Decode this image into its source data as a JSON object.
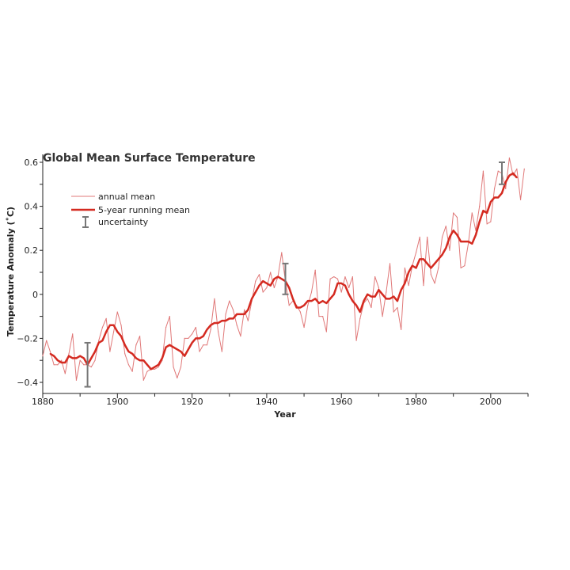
{
  "chart_data": {
    "type": "line",
    "title": "Global Mean Surface Temperature",
    "xlabel": "Year",
    "ylabel": "Temperature Anomaly (˚C)",
    "xlim": [
      1880,
      2010
    ],
    "ylim": [
      -0.45,
      0.65
    ],
    "x_ticks": [
      1880,
      1900,
      1920,
      1940,
      1960,
      1980,
      2000
    ],
    "y_ticks": [
      -0.4,
      -0.2,
      0,
      0.2,
      0.4,
      0.6
    ],
    "y_tick_labels": [
      "−0.4",
      "−0.2",
      "0",
      "0.2",
      "0.4",
      "0.6"
    ],
    "grid": false,
    "legend_position": "top-left",
    "colors": {
      "annual": "#e07878",
      "running": "#d42a20",
      "uncertainty": "#777777"
    },
    "series": [
      {
        "name": "annual mean",
        "x": [
          1880,
          1881,
          1882,
          1883,
          1884,
          1885,
          1886,
          1887,
          1888,
          1889,
          1890,
          1891,
          1892,
          1893,
          1894,
          1895,
          1896,
          1897,
          1898,
          1899,
          1900,
          1901,
          1902,
          1903,
          1904,
          1905,
          1906,
          1907,
          1908,
          1909,
          1910,
          1911,
          1912,
          1913,
          1914,
          1915,
          1916,
          1917,
          1918,
          1919,
          1920,
          1921,
          1922,
          1923,
          1924,
          1925,
          1926,
          1927,
          1928,
          1929,
          1930,
          1931,
          1932,
          1933,
          1934,
          1935,
          1936,
          1937,
          1938,
          1939,
          1940,
          1941,
          1942,
          1943,
          1944,
          1945,
          1946,
          1947,
          1948,
          1949,
          1950,
          1951,
          1952,
          1953,
          1954,
          1955,
          1956,
          1957,
          1958,
          1959,
          1960,
          1961,
          1962,
          1963,
          1964,
          1965,
          1966,
          1967,
          1968,
          1969,
          1970,
          1971,
          1972,
          1973,
          1974,
          1975,
          1976,
          1977,
          1978,
          1979,
          1980,
          1981,
          1982,
          1983,
          1984,
          1985,
          1986,
          1987,
          1988,
          1989,
          1990,
          1991,
          1992,
          1993,
          1994,
          1995,
          1996,
          1997,
          1998,
          1999,
          2000,
          2001,
          2002,
          2003,
          2004,
          2005,
          2006,
          2007,
          2008,
          2009
        ],
        "values": [
          -0.28,
          -0.21,
          -0.26,
          -0.32,
          -0.32,
          -0.3,
          -0.36,
          -0.27,
          -0.18,
          -0.39,
          -0.3,
          -0.32,
          -0.32,
          -0.33,
          -0.3,
          -0.21,
          -0.15,
          -0.11,
          -0.26,
          -0.17,
          -0.08,
          -0.14,
          -0.27,
          -0.32,
          -0.35,
          -0.23,
          -0.19,
          -0.39,
          -0.35,
          -0.34,
          -0.34,
          -0.33,
          -0.3,
          -0.15,
          -0.1,
          -0.33,
          -0.38,
          -0.33,
          -0.2,
          -0.2,
          -0.18,
          -0.15,
          -0.26,
          -0.23,
          -0.23,
          -0.16,
          -0.02,
          -0.17,
          -0.26,
          -0.09,
          -0.03,
          -0.07,
          -0.14,
          -0.19,
          -0.07,
          -0.12,
          -0.03,
          0.06,
          0.09,
          0.01,
          0.03,
          0.1,
          0.03,
          0.08,
          0.19,
          0.06,
          -0.05,
          -0.03,
          -0.05,
          -0.08,
          -0.15,
          -0.05,
          0.01,
          0.11,
          -0.1,
          -0.1,
          -0.17,
          0.07,
          0.08,
          0.07,
          0.01,
          0.08,
          0.03,
          0.08,
          -0.21,
          -0.11,
          -0.04,
          -0.02,
          -0.06,
          0.08,
          0.03,
          -0.1,
          0.01,
          0.14,
          -0.08,
          -0.06,
          -0.16,
          0.12,
          0.04,
          0.13,
          0.19,
          0.26,
          0.04,
          0.26,
          0.09,
          0.05,
          0.12,
          0.26,
          0.31,
          0.2,
          0.37,
          0.35,
          0.12,
          0.13,
          0.23,
          0.37,
          0.29,
          0.4,
          0.56,
          0.32,
          0.33,
          0.48,
          0.56,
          0.55,
          0.48,
          0.62,
          0.54,
          0.57,
          0.43,
          0.57
        ]
      },
      {
        "name": "5-year running mean",
        "x": [
          1882,
          1883,
          1884,
          1885,
          1886,
          1887,
          1888,
          1889,
          1890,
          1891,
          1892,
          1893,
          1894,
          1895,
          1896,
          1897,
          1898,
          1899,
          1900,
          1901,
          1902,
          1903,
          1904,
          1905,
          1906,
          1907,
          1908,
          1909,
          1910,
          1911,
          1912,
          1913,
          1914,
          1915,
          1916,
          1917,
          1918,
          1919,
          1920,
          1921,
          1922,
          1923,
          1924,
          1925,
          1926,
          1927,
          1928,
          1929,
          1930,
          1931,
          1932,
          1933,
          1934,
          1935,
          1936,
          1937,
          1938,
          1939,
          1940,
          1941,
          1942,
          1943,
          1944,
          1945,
          1946,
          1947,
          1948,
          1949,
          1950,
          1951,
          1952,
          1953,
          1954,
          1955,
          1956,
          1957,
          1958,
          1959,
          1960,
          1961,
          1962,
          1963,
          1964,
          1965,
          1966,
          1967,
          1968,
          1969,
          1970,
          1971,
          1972,
          1973,
          1974,
          1975,
          1976,
          1977,
          1978,
          1979,
          1980,
          1981,
          1982,
          1983,
          1984,
          1985,
          1986,
          1987,
          1988,
          1989,
          1990,
          1991,
          1992,
          1993,
          1994,
          1995,
          1996,
          1997,
          1998,
          1999,
          2000,
          2001,
          2002,
          2003,
          2004,
          2005,
          2006,
          2007
        ],
        "values": [
          -0.27,
          -0.28,
          -0.3,
          -0.31,
          -0.31,
          -0.28,
          -0.29,
          -0.29,
          -0.28,
          -0.29,
          -0.32,
          -0.29,
          -0.26,
          -0.22,
          -0.21,
          -0.17,
          -0.14,
          -0.14,
          -0.17,
          -0.19,
          -0.23,
          -0.26,
          -0.27,
          -0.29,
          -0.3,
          -0.3,
          -0.32,
          -0.34,
          -0.33,
          -0.32,
          -0.29,
          -0.24,
          -0.23,
          -0.24,
          -0.25,
          -0.26,
          -0.28,
          -0.25,
          -0.22,
          -0.2,
          -0.2,
          -0.19,
          -0.16,
          -0.14,
          -0.13,
          -0.13,
          -0.12,
          -0.12,
          -0.11,
          -0.11,
          -0.09,
          -0.09,
          -0.09,
          -0.07,
          -0.02,
          0.01,
          0.04,
          0.06,
          0.05,
          0.04,
          0.07,
          0.08,
          0.07,
          0.06,
          0.03,
          -0.02,
          -0.06,
          -0.06,
          -0.05,
          -0.03,
          -0.03,
          -0.02,
          -0.04,
          -0.03,
          -0.04,
          -0.02,
          0.0,
          0.05,
          0.05,
          0.04,
          0.0,
          -0.03,
          -0.05,
          -0.08,
          -0.03,
          0.0,
          -0.01,
          -0.01,
          0.02,
          0.0,
          -0.02,
          -0.02,
          -0.01,
          -0.03,
          0.02,
          0.05,
          0.1,
          0.13,
          0.12,
          0.16,
          0.16,
          0.14,
          0.12,
          0.14,
          0.16,
          0.18,
          0.21,
          0.26,
          0.29,
          0.27,
          0.24,
          0.24,
          0.24,
          0.23,
          0.27,
          0.33,
          0.38,
          0.37,
          0.42,
          0.44,
          0.44,
          0.46,
          0.51,
          0.54,
          0.55,
          0.53
        ]
      }
    ],
    "uncertainty": {
      "name": "uncertainty",
      "bars": [
        {
          "x": 1892,
          "low": -0.42,
          "high": -0.22
        },
        {
          "x": 1945,
          "low": 0.0,
          "high": 0.14
        },
        {
          "x": 2003,
          "low": 0.5,
          "high": 0.6
        }
      ]
    }
  }
}
